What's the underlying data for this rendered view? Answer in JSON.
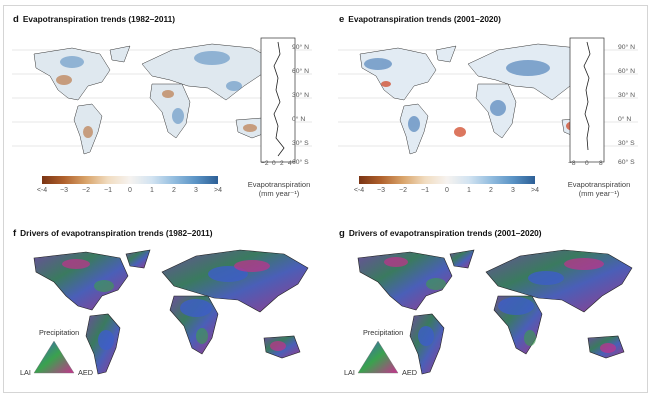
{
  "panels": {
    "d": {
      "letter": "d",
      "title": "Evapotranspiration trends (1982–2011)"
    },
    "e": {
      "letter": "e",
      "title": "Evapotranspiration trends (2001–2020)"
    },
    "f": {
      "letter": "f",
      "title": "Drivers of evapotranspiration trends (1982–2011)"
    },
    "g": {
      "letter": "g",
      "title": "Drivers of evapotranspiration trends (2001–2020)"
    }
  },
  "latitudes": [
    "90° N",
    "60° N",
    "30° N",
    "0° N",
    "30° S",
    "60° S"
  ],
  "colorbar": {
    "ticks": [
      "<-4",
      "−3",
      "−2",
      "−1",
      "0",
      "1",
      "2",
      "3",
      ">4"
    ],
    "label_line1": "Evapotranspiration",
    "label_line2": "(mm year⁻¹)",
    "colors": [
      "#7a3414",
      "#b0612d",
      "#d9a46a",
      "#f1dcc0",
      "#f6f3f0",
      "#d2e3f1",
      "#93bddf",
      "#5a93c5",
      "#2d5f96"
    ]
  },
  "side_panel_d": {
    "ticks": [
      "−2",
      "0",
      "2",
      "4"
    ]
  },
  "side_panel_e": {
    "ticks": [
      "−8",
      "0",
      "8"
    ]
  },
  "ternary": {
    "top": "Precipitation",
    "left": "LAI",
    "right": "AED",
    "colors": {
      "precipitation": "#3f5fc8",
      "lai": "#3aa24e",
      "aed": "#c8318f"
    }
  },
  "map_colors": {
    "land_base": "#e6e1da",
    "ocean": "#ffffff",
    "gridline": "#c9c9c9"
  }
}
